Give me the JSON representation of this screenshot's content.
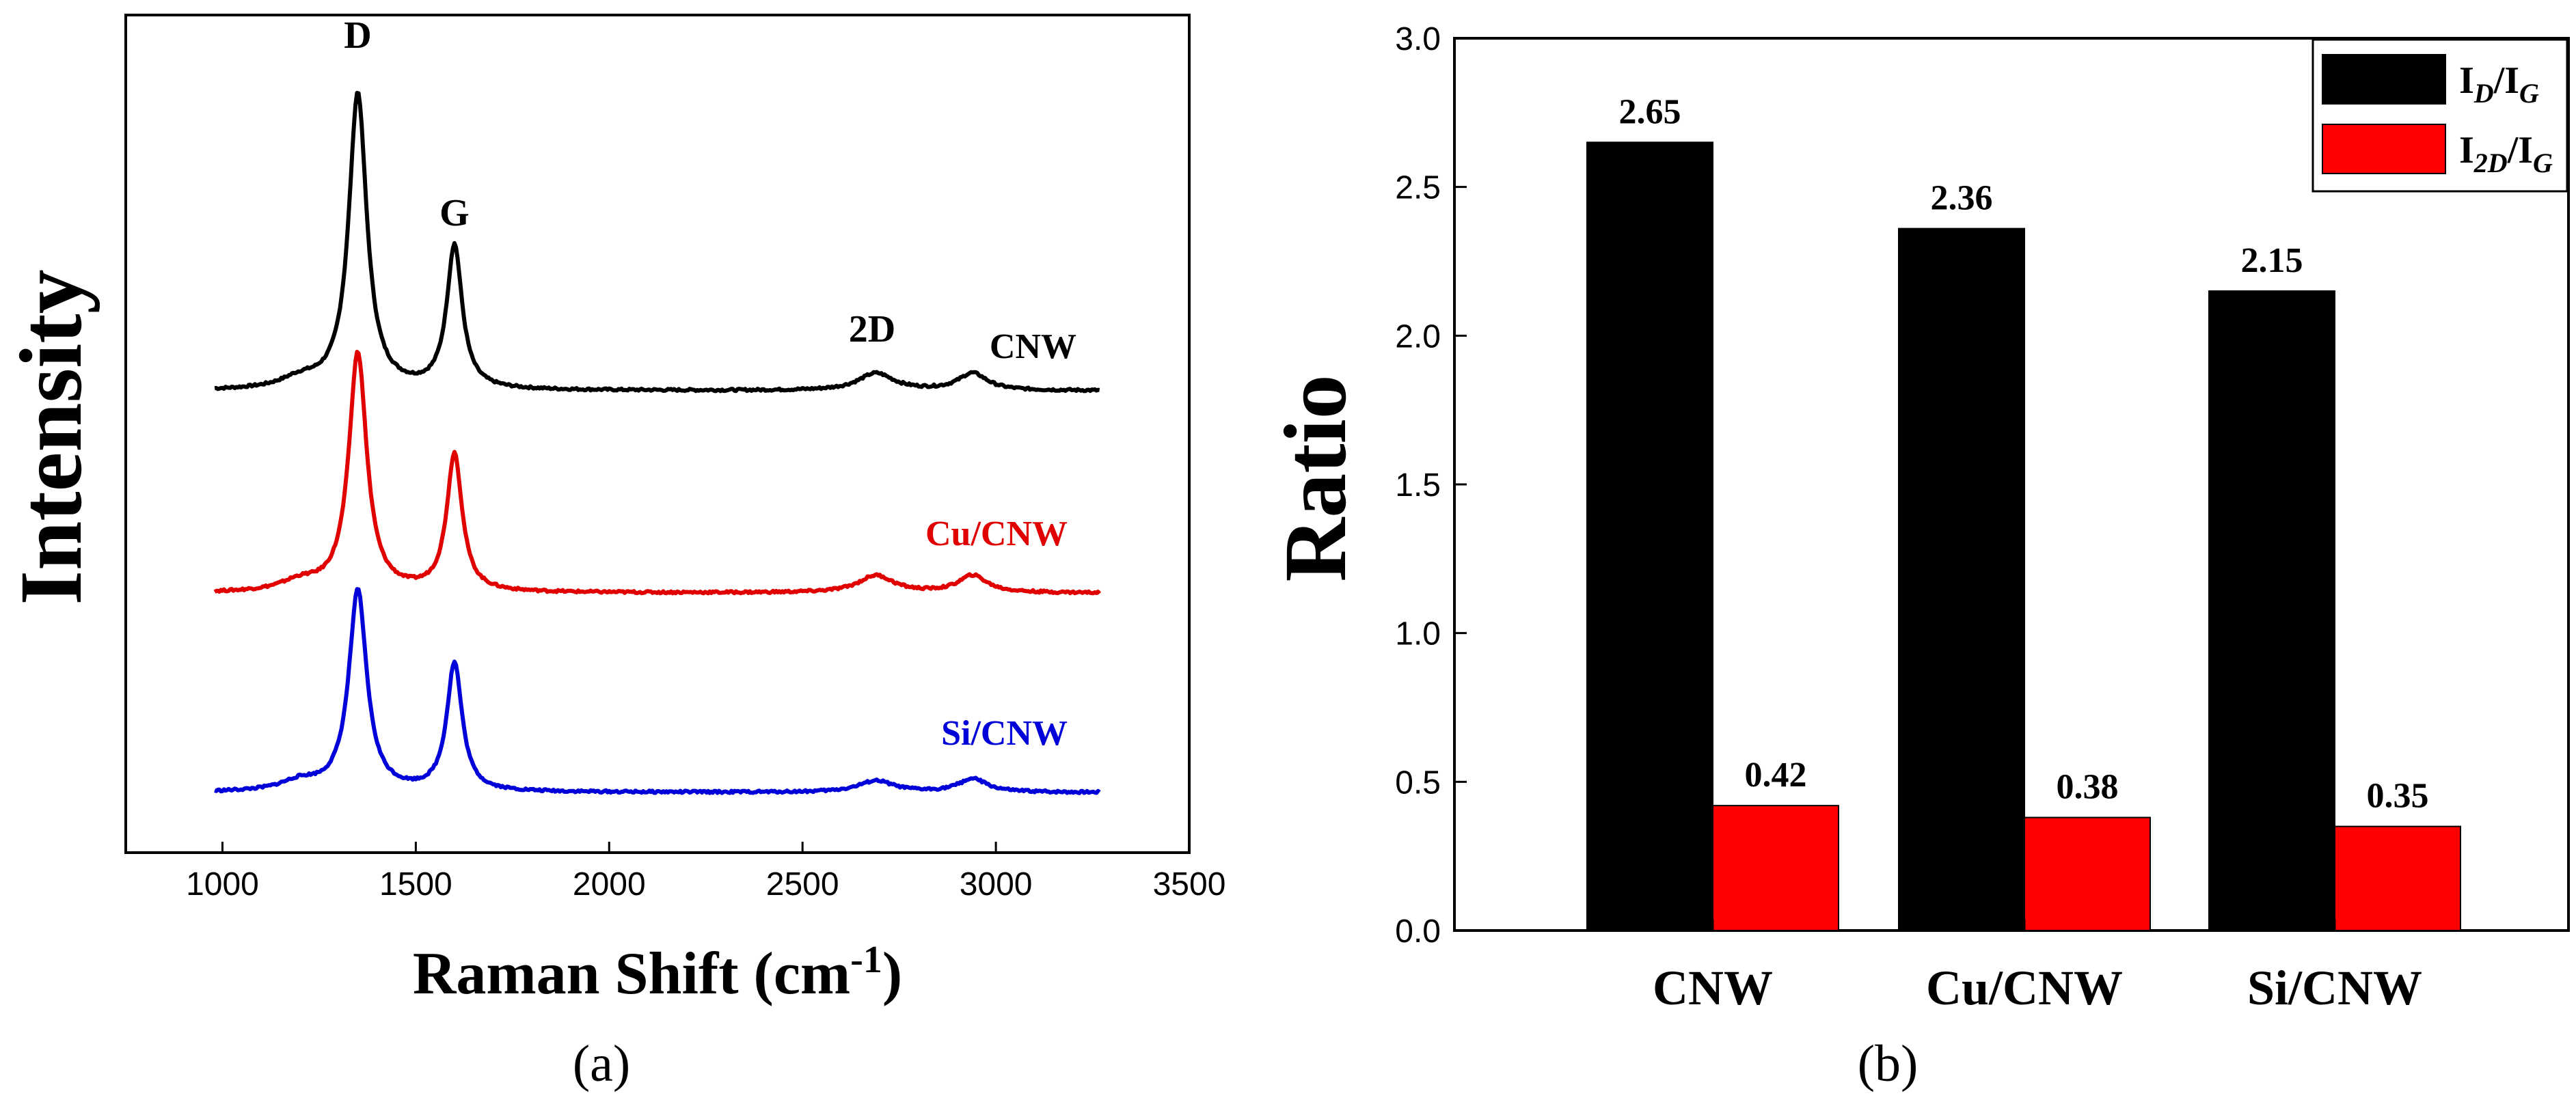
{
  "chart_data": [
    {
      "type": "line",
      "panel": "(a)",
      "title": "",
      "xlabel": "Raman Shift (cm",
      "xlabel_sup": "-1",
      "xlabel_close": ")",
      "ylabel": "Intensity",
      "xlim": [
        750,
        3500
      ],
      "xticks": [
        1000,
        1500,
        2000,
        2500,
        3000,
        3500
      ],
      "yticks_shown": false,
      "peak_labels": [
        {
          "text": "D",
          "x": 1350
        },
        {
          "text": "G",
          "x": 1600
        },
        {
          "text": "2D",
          "x": 2680
        }
      ],
      "series": [
        {
          "name": "CNW",
          "color": "#000000",
          "offset": 2.0,
          "peaks": [
            {
              "center": 1350,
              "height": 1.55,
              "width": 28
            },
            {
              "center": 1600,
              "height": 0.75,
              "width": 24
            },
            {
              "center": 1200,
              "height": 0.05,
              "width": 60
            },
            {
              "center": 2690,
              "height": 0.09,
              "width": 55
            },
            {
              "center": 2940,
              "height": 0.09,
              "width": 45
            }
          ]
        },
        {
          "name": "Cu/CNW",
          "color": "#e00000",
          "offset": 1.0,
          "peaks": [
            {
              "center": 1350,
              "height": 1.25,
              "width": 28
            },
            {
              "center": 1600,
              "height": 0.72,
              "width": 24
            },
            {
              "center": 1200,
              "height": 0.05,
              "width": 60
            },
            {
              "center": 2690,
              "height": 0.09,
              "width": 55
            },
            {
              "center": 2940,
              "height": 0.09,
              "width": 45
            }
          ]
        },
        {
          "name": "Si/CNW",
          "color": "#0000d8",
          "offset": 0.0,
          "peaks": [
            {
              "center": 1350,
              "height": 1.05,
              "width": 28
            },
            {
              "center": 1600,
              "height": 0.67,
              "width": 24
            },
            {
              "center": 1200,
              "height": 0.05,
              "width": 60
            },
            {
              "center": 2690,
              "height": 0.06,
              "width": 55
            },
            {
              "center": 2940,
              "height": 0.07,
              "width": 45
            }
          ]
        }
      ],
      "x_range": [
        980,
        3270
      ]
    },
    {
      "type": "bar",
      "panel": "(b)",
      "title": "",
      "xlabel": "",
      "ylabel": "Ratio",
      "ylim": [
        0.0,
        3.0
      ],
      "yticks": [
        "0.0",
        "0.5",
        "1.0",
        "1.5",
        "2.0",
        "2.5",
        "3.0"
      ],
      "categories": [
        "CNW",
        "Cu/CNW",
        "Si/CNW"
      ],
      "legend_position": "top-right",
      "series": [
        {
          "name": "I_D/I_G",
          "legend_main": "I",
          "legend_sub1": "D",
          "legend_mid": "/I",
          "legend_sub2": "G",
          "color": "#000000",
          "values": [
            2.65,
            2.36,
            2.15
          ],
          "labels": [
            "2.65",
            "2.36",
            "2.15"
          ]
        },
        {
          "name": "I_2D/I_G",
          "legend_main": "I",
          "legend_sub1": "2D",
          "legend_mid": "/I",
          "legend_sub2": "G",
          "color": "#ff0000",
          "values": [
            0.42,
            0.38,
            0.35
          ],
          "labels": [
            "0.42",
            "0.38",
            "0.35"
          ]
        }
      ]
    }
  ]
}
